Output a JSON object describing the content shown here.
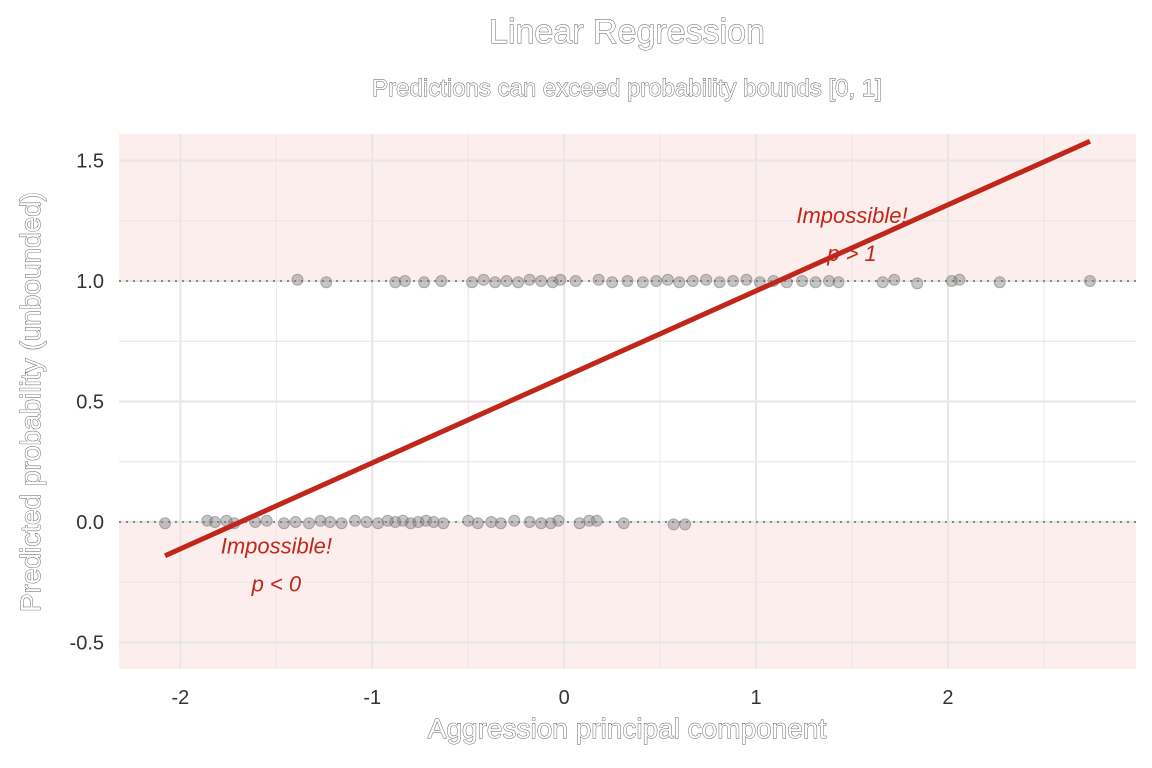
{
  "chart_data": {
    "type": "scatter",
    "title": "Linear Regression",
    "subtitle": "Predictions can exceed probability bounds [0, 1]",
    "xlabel": "Aggression principal component",
    "ylabel": "Predicted probability (unbounded)",
    "xlim": [
      -2.32,
      2.98
    ],
    "ylim": [
      -0.61,
      1.61
    ],
    "x_ticks": [
      -2,
      -1,
      0,
      1,
      2
    ],
    "x_tick_labels": [
      "-2",
      "-1",
      "0",
      "1",
      "2"
    ],
    "y_ticks": [
      -0.5,
      0.0,
      0.5,
      1.0,
      1.5
    ],
    "y_tick_labels": [
      "-0.5",
      "0.0",
      "0.5",
      "1.0",
      "1.5"
    ],
    "grid": true,
    "reference_lines_y": [
      0,
      1
    ],
    "shaded_regions": [
      {
        "name": "p < 0",
        "y": [
          -0.61,
          0
        ],
        "color": "#fdeeee"
      },
      {
        "name": "p > 1",
        "y": [
          1,
          1.61
        ],
        "color": "#fdeeee"
      }
    ],
    "series": [
      {
        "kind": "points",
        "color": "#808080",
        "points": [
          {
            "x": -2.08,
            "y": -0.005
          },
          {
            "x": -1.86,
            "y": 0.005
          },
          {
            "x": -1.82,
            "y": 0.0
          },
          {
            "x": -1.76,
            "y": 0.005
          },
          {
            "x": -1.72,
            "y": -0.005
          },
          {
            "x": -1.61,
            "y": 0.0
          },
          {
            "x": -1.55,
            "y": 0.005
          },
          {
            "x": -1.46,
            "y": -0.005
          },
          {
            "x": -1.4,
            "y": 0.0
          },
          {
            "x": -1.33,
            "y": -0.005
          },
          {
            "x": -1.27,
            "y": 0.005
          },
          {
            "x": -1.22,
            "y": 0.0
          },
          {
            "x": -1.16,
            "y": -0.005
          },
          {
            "x": -1.09,
            "y": 0.005
          },
          {
            "x": -1.03,
            "y": 0.0
          },
          {
            "x": -0.97,
            "y": -0.005
          },
          {
            "x": -0.92,
            "y": 0.005
          },
          {
            "x": -0.88,
            "y": 0.0
          },
          {
            "x": -0.84,
            "y": 0.005
          },
          {
            "x": -0.8,
            "y": -0.005
          },
          {
            "x": -0.76,
            "y": 0.0
          },
          {
            "x": -0.72,
            "y": 0.005
          },
          {
            "x": -0.68,
            "y": 0.0
          },
          {
            "x": -0.63,
            "y": -0.005
          },
          {
            "x": -0.5,
            "y": 0.005
          },
          {
            "x": -0.45,
            "y": -0.005
          },
          {
            "x": -0.38,
            "y": 0.0
          },
          {
            "x": -0.33,
            "y": -0.005
          },
          {
            "x": -0.26,
            "y": 0.005
          },
          {
            "x": -0.18,
            "y": 0.0
          },
          {
            "x": -0.12,
            "y": -0.005
          },
          {
            "x": -0.07,
            "y": -0.005
          },
          {
            "x": -0.03,
            "y": 0.005
          },
          {
            "x": 0.08,
            "y": -0.005
          },
          {
            "x": 0.13,
            "y": 0.005
          },
          {
            "x": 0.17,
            "y": 0.005
          },
          {
            "x": 0.31,
            "y": -0.005
          },
          {
            "x": 0.57,
            "y": -0.01
          },
          {
            "x": 0.63,
            "y": -0.01
          },
          {
            "x": -1.39,
            "y": 1.005
          },
          {
            "x": -1.24,
            "y": 0.995
          },
          {
            "x": -0.88,
            "y": 0.995
          },
          {
            "x": -0.83,
            "y": 1.0
          },
          {
            "x": -0.73,
            "y": 0.995
          },
          {
            "x": -0.64,
            "y": 1.0
          },
          {
            "x": -0.48,
            "y": 0.995
          },
          {
            "x": -0.42,
            "y": 1.005
          },
          {
            "x": -0.36,
            "y": 0.995
          },
          {
            "x": -0.3,
            "y": 1.0
          },
          {
            "x": -0.24,
            "y": 0.995
          },
          {
            "x": -0.18,
            "y": 1.005
          },
          {
            "x": -0.12,
            "y": 1.0
          },
          {
            "x": -0.06,
            "y": 0.995
          },
          {
            "x": -0.02,
            "y": 1.005
          },
          {
            "x": 0.06,
            "y": 1.0
          },
          {
            "x": 0.18,
            "y": 1.005
          },
          {
            "x": 0.25,
            "y": 0.995
          },
          {
            "x": 0.33,
            "y": 1.0
          },
          {
            "x": 0.41,
            "y": 0.995
          },
          {
            "x": 0.48,
            "y": 1.0
          },
          {
            "x": 0.54,
            "y": 1.005
          },
          {
            "x": 0.6,
            "y": 0.995
          },
          {
            "x": 0.67,
            "y": 1.0
          },
          {
            "x": 0.74,
            "y": 1.005
          },
          {
            "x": 0.81,
            "y": 0.995
          },
          {
            "x": 0.88,
            "y": 1.0
          },
          {
            "x": 0.95,
            "y": 1.005
          },
          {
            "x": 1.02,
            "y": 0.995
          },
          {
            "x": 1.09,
            "y": 1.0
          },
          {
            "x": 1.16,
            "y": 0.995
          },
          {
            "x": 1.24,
            "y": 1.0
          },
          {
            "x": 1.31,
            "y": 0.995
          },
          {
            "x": 1.38,
            "y": 1.0
          },
          {
            "x": 1.43,
            "y": 0.995
          },
          {
            "x": 1.66,
            "y": 0.995
          },
          {
            "x": 1.72,
            "y": 1.005
          },
          {
            "x": 1.84,
            "y": 0.99
          },
          {
            "x": 2.02,
            "y": 1.0
          },
          {
            "x": 2.06,
            "y": 1.005
          },
          {
            "x": 2.27,
            "y": 0.995
          },
          {
            "x": 2.74,
            "y": 1.0
          }
        ]
      },
      {
        "kind": "line",
        "color": "#c0271a",
        "x": [
          -2.08,
          2.74
        ],
        "y": [
          -0.14,
          1.58
        ]
      }
    ],
    "annotations": [
      {
        "line1": "Impossible!",
        "line2": "p > 1",
        "x": 1.5,
        "y": 1.24
      },
      {
        "line1": "Impossible!",
        "line2": "p < 0",
        "x": -1.5,
        "y": -0.13
      }
    ]
  }
}
